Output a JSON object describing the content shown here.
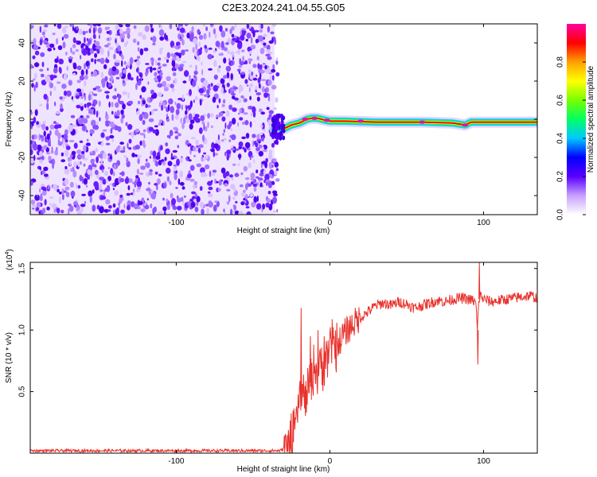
{
  "title": "C2E3.2024.241.04.55.G05",
  "chart_data": [
    {
      "type": "heatmap",
      "xlabel": "Height of straight line (km)",
      "ylabel": "Frequency (Hz)",
      "xlim": [
        -195,
        135
      ],
      "ylim": [
        -50,
        50
      ],
      "x_ticks": [
        -100,
        0,
        100
      ],
      "x_tick_labels": [
        "-100",
        "0",
        "100"
      ],
      "y_ticks": [
        -40,
        -20,
        0,
        20,
        40
      ],
      "y_tick_labels": [
        "-40",
        "-20",
        "0",
        "20",
        "40"
      ],
      "noise_region_x": [
        -195,
        -36
      ],
      "signal_line": {
        "x": [
          -36,
          -33,
          -30,
          -25,
          -20,
          -15,
          -12,
          -8,
          -3,
          0,
          10,
          30,
          60,
          80,
          88,
          92,
          100,
          120,
          135
        ],
        "y": [
          -5,
          -4,
          -5,
          -3,
          -2,
          0,
          0.5,
          0.5,
          -0.5,
          -1,
          -1,
          -1.5,
          -1.5,
          -2,
          -3,
          -1.5,
          -1.5,
          -1.5,
          -1.5
        ]
      },
      "colorbar": {
        "label": "Normalized spectral amplitude",
        "range": [
          0,
          1
        ],
        "ticks": [
          0,
          0.2,
          0.4,
          0.6,
          0.8
        ],
        "tick_labels": [
          "0.0",
          "0.2",
          "0.4",
          "0.6",
          "0.8"
        ],
        "colors": [
          "#ffffff",
          "#c8a0ff",
          "#5a00ff",
          "#0000ff",
          "#00c8ff",
          "#00ff64",
          "#78ff00",
          "#ffff00",
          "#ffa000",
          "#ff0000",
          "#ff00a0"
        ]
      }
    },
    {
      "type": "line",
      "xlabel": "Height of straight line (km)",
      "ylabel": "SNR (10 * v/v)",
      "y_scale_label": "(x10",
      "y_scale_exp": "4",
      "y_scale_close": ")",
      "xlim": [
        -195,
        135
      ],
      "ylim": [
        0,
        1.55
      ],
      "x_ticks": [
        -100,
        0,
        100
      ],
      "x_tick_labels": [
        "-100",
        "0",
        "100"
      ],
      "y_ticks": [
        0.5,
        1.0,
        1.5
      ],
      "y_tick_labels": [
        "0.5",
        "1.0",
        "1.5"
      ],
      "series": [
        {
          "color": "#e8322c",
          "x": [
            -195,
            -100,
            -40,
            -33,
            -30,
            -26,
            -24,
            -22,
            -20,
            -18,
            -16,
            -14,
            -12,
            -10,
            -8,
            -6,
            -4,
            -2,
            0,
            2,
            4,
            6,
            8,
            10,
            15,
            20,
            25,
            30,
            35,
            40,
            45,
            50,
            55,
            60,
            65,
            70,
            75,
            80,
            85,
            90,
            93,
            95,
            96,
            97,
            98,
            100,
            105,
            110,
            115,
            120,
            125,
            130,
            135
          ],
          "y": [
            0.02,
            0.02,
            0.02,
            0.02,
            0.03,
            0.06,
            0.12,
            0.25,
            0.45,
            0.5,
            0.4,
            0.55,
            0.6,
            0.7,
            0.65,
            0.72,
            0.75,
            0.8,
            0.85,
            0.88,
            0.87,
            0.9,
            0.95,
            0.98,
            1.05,
            1.1,
            1.15,
            1.2,
            1.22,
            1.2,
            1.23,
            1.21,
            1.18,
            1.2,
            1.22,
            1.24,
            1.23,
            1.25,
            1.26,
            1.25,
            1.24,
            1.22,
            1.0,
            1.25,
            1.28,
            1.25,
            1.23,
            1.24,
            1.25,
            1.26,
            1.27,
            1.28,
            1.26
          ]
        }
      ],
      "spikes": [
        {
          "x": -19,
          "y": 1.18
        },
        {
          "x": -13,
          "y": 0.95
        },
        {
          "x": -8,
          "y": 1.0
        },
        {
          "x": -4,
          "y": 0.95
        },
        {
          "x": 96,
          "y": 0.72
        },
        {
          "x": 97,
          "y": 1.55
        }
      ]
    }
  ]
}
